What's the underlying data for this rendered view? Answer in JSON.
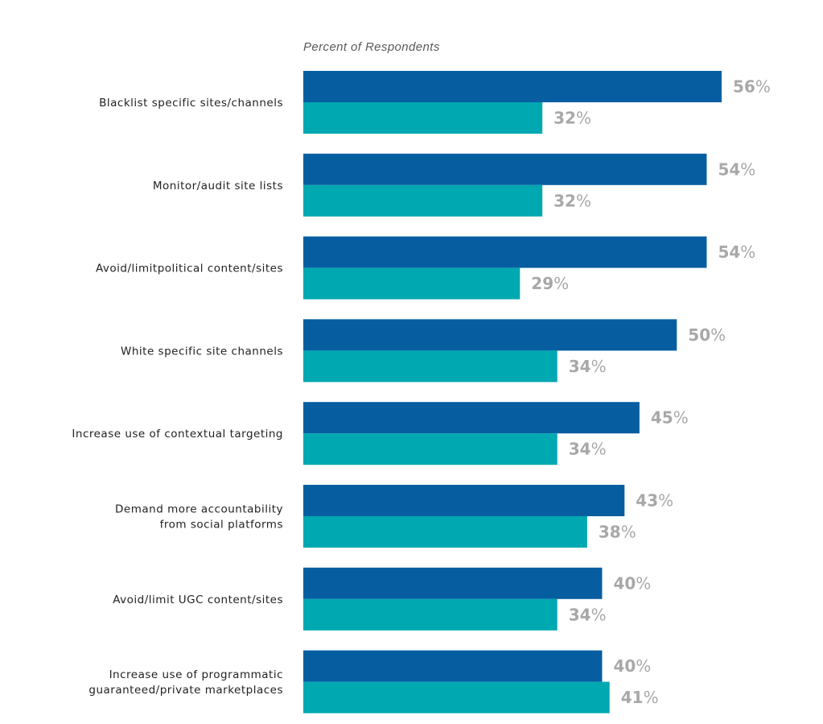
{
  "chart_data": {
    "type": "bar",
    "orientation": "horizontal",
    "title": "",
    "subtitle": "Percent of Respondents",
    "xlabel": "",
    "ylabel": "",
    "xlim": [
      0,
      56
    ],
    "grid": false,
    "legend": "none",
    "value_suffix": "%",
    "categories": [
      [
        "Blacklist specific sites/channels"
      ],
      [
        "Monitor/audit site lists"
      ],
      [
        "Avoid/limitpolitical content/sites"
      ],
      [
        "White specific site channels"
      ],
      [
        "Increase use of contextual targeting"
      ],
      [
        "Demand more accountability",
        "from social platforms"
      ],
      [
        "Avoid/limit UGC content/sites"
      ],
      [
        "Increase use of programmatic",
        "guaranteed/private marketplaces"
      ]
    ],
    "series": [
      {
        "values": [
          56,
          54,
          54,
          50,
          45,
          43,
          40,
          40
        ],
        "color": "#065ea1"
      },
      {
        "values": [
          32,
          32,
          29,
          34,
          34,
          38,
          34,
          41
        ],
        "color": "#00a8b1"
      }
    ],
    "label_color": "#a8a8a8"
  }
}
